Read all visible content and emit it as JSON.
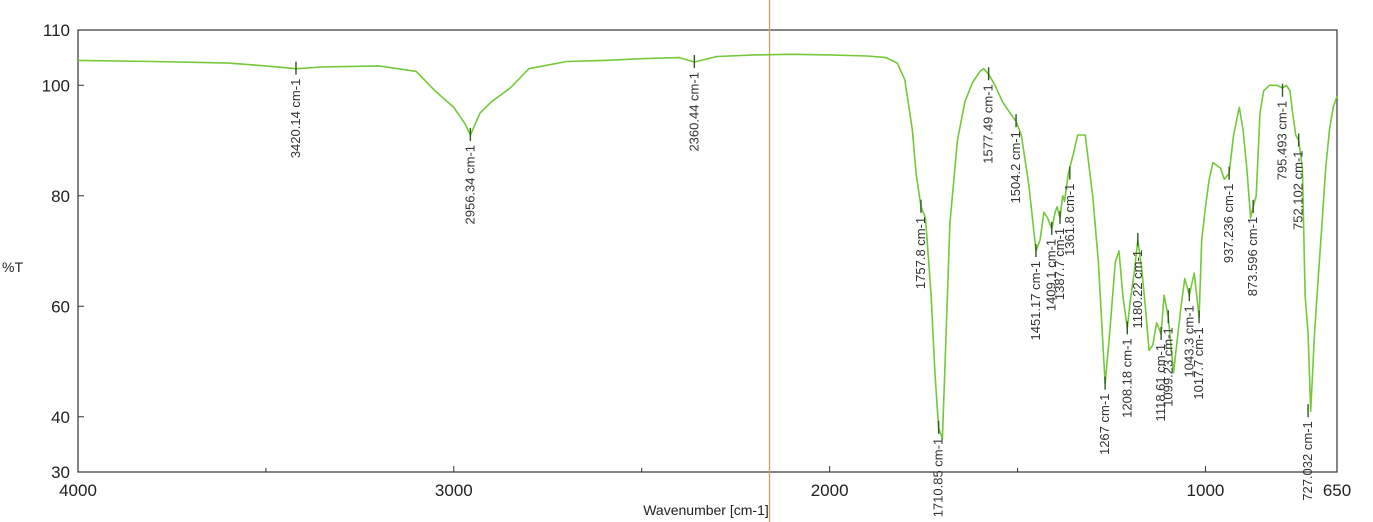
{
  "chart_data": {
    "type": "line",
    "xlabel": "Wavenumber [cm-1]",
    "ylabel": "%T",
    "xlim": [
      4000,
      650
    ],
    "ylim": [
      30,
      110
    ],
    "x_ticks": [
      4000,
      3000,
      2000,
      1000,
      650
    ],
    "y_ticks": [
      30,
      40,
      60,
      80,
      100,
      110
    ],
    "grid": false,
    "colors": {
      "trace": "#74c83a",
      "frame": "#333333",
      "marker_line": "#c8a06a"
    },
    "marker_x": 2160,
    "series": [
      {
        "name": "",
        "x": [
          4000,
          3800,
          3600,
          3500,
          3420,
          3350,
          3200,
          3100,
          3050,
          3000,
          2970,
          2956,
          2930,
          2900,
          2870,
          2850,
          2800,
          2700,
          2600,
          2500,
          2400,
          2360,
          2300,
          2200,
          2100,
          2000,
          1900,
          1850,
          1820,
          1800,
          1780,
          1770,
          1757,
          1745,
          1730,
          1720,
          1710,
          1700,
          1690,
          1680,
          1660,
          1640,
          1620,
          1600,
          1590,
          1577,
          1560,
          1540,
          1520,
          1504,
          1490,
          1470,
          1451,
          1440,
          1430,
          1420,
          1409,
          1400,
          1395,
          1387,
          1380,
          1375,
          1365,
          1350,
          1340,
          1320,
          1300,
          1285,
          1267,
          1255,
          1240,
          1230,
          1220,
          1208,
          1200,
          1190,
          1180,
          1170,
          1160,
          1150,
          1140,
          1130,
          1118,
          1110,
          1099,
          1085,
          1075,
          1065,
          1055,
          1043,
          1030,
          1017,
          1010,
          1000,
          990,
          980,
          960,
          950,
          937,
          925,
          910,
          900,
          890,
          880,
          873,
          865,
          855,
          845,
          830,
          810,
          795,
          785,
          775,
          770,
          760,
          752,
          742,
          735,
          727,
          720,
          710,
          700,
          690,
          680,
          670,
          660,
          650
        ],
        "y": [
          104.5,
          104.3,
          104,
          103.5,
          103,
          103.3,
          103.5,
          102.5,
          99,
          96,
          93,
          91,
          95,
          97,
          98.5,
          99.5,
          103,
          104.3,
          104.5,
          104.8,
          105,
          104.2,
          105.2,
          105.5,
          105.6,
          105.5,
          105.3,
          105,
          104,
          101,
          92,
          84,
          78,
          76,
          62,
          48,
          38,
          36,
          55,
          75,
          90,
          97,
          100.5,
          102.5,
          103,
          102,
          100,
          97,
          95,
          93.5,
          91,
          82,
          70,
          72,
          77,
          76,
          74,
          77,
          78,
          76,
          80,
          79,
          84,
          88,
          91,
          91,
          80,
          68,
          46,
          55,
          68,
          70,
          62,
          56,
          61,
          66,
          72,
          67,
          60,
          52,
          53,
          57,
          55,
          62,
          58,
          48,
          54,
          60,
          65,
          62,
          66,
          58,
          72,
          78,
          83,
          86,
          85,
          83,
          84,
          91,
          96,
          92,
          85,
          76,
          78,
          80,
          95,
          99,
          100,
          100,
          99.5,
          100,
          99,
          96,
          91,
          90,
          85,
          62,
          55,
          41,
          55,
          65,
          75,
          85,
          92,
          96,
          98
        ]
      }
    ],
    "annotations": [
      {
        "x": 3420,
        "y": 103.0,
        "label": "3420.14 cm-1"
      },
      {
        "x": 2956,
        "y": 91.0,
        "label": "2956.34 cm-1"
      },
      {
        "x": 2360,
        "y": 104.2,
        "label": "2360.44 cm-1"
      },
      {
        "x": 1757,
        "y": 78.0,
        "label": "1757.8 cm-1"
      },
      {
        "x": 1710,
        "y": 38.0,
        "label": "1710.85 cm-1"
      },
      {
        "x": 1577,
        "y": 102.0,
        "label": "1577.49 cm-1"
      },
      {
        "x": 1504,
        "y": 93.5,
        "label": "1504.2 cm-1"
      },
      {
        "x": 1451,
        "y": 70.0,
        "label": "1451.17 cm-1"
      },
      {
        "x": 1409,
        "y": 74.0,
        "label": "1409.1 cm-1"
      },
      {
        "x": 1387,
        "y": 76.0,
        "label": "1387.7 cm-1"
      },
      {
        "x": 1361,
        "y": 84.0,
        "label": "1361.8 cm-1"
      },
      {
        "x": 1267,
        "y": 46.0,
        "label": "1267 cm-1"
      },
      {
        "x": 1208,
        "y": 56.0,
        "label": "1208.18 cm-1"
      },
      {
        "x": 1180,
        "y": 72.0,
        "label": "1180.22 cm-1"
      },
      {
        "x": 1118,
        "y": 55.0,
        "label": "1118.61 cm-1"
      },
      {
        "x": 1099,
        "y": 58.0,
        "label": "1099.23 cm-1"
      },
      {
        "x": 1043,
        "y": 62.0,
        "label": "1043.3 cm-1"
      },
      {
        "x": 1017,
        "y": 58.0,
        "label": "1017.7 cm-1"
      },
      {
        "x": 937,
        "y": 84.0,
        "label": "937.236 cm-1"
      },
      {
        "x": 873,
        "y": 78.0,
        "label": "873.596 cm-1"
      },
      {
        "x": 795,
        "y": 99.0,
        "label": "795.493 cm-1"
      },
      {
        "x": 752,
        "y": 90.0,
        "label": "752.102 cm-1"
      },
      {
        "x": 727,
        "y": 41.0,
        "label": "727.032 cm-1"
      }
    ]
  }
}
